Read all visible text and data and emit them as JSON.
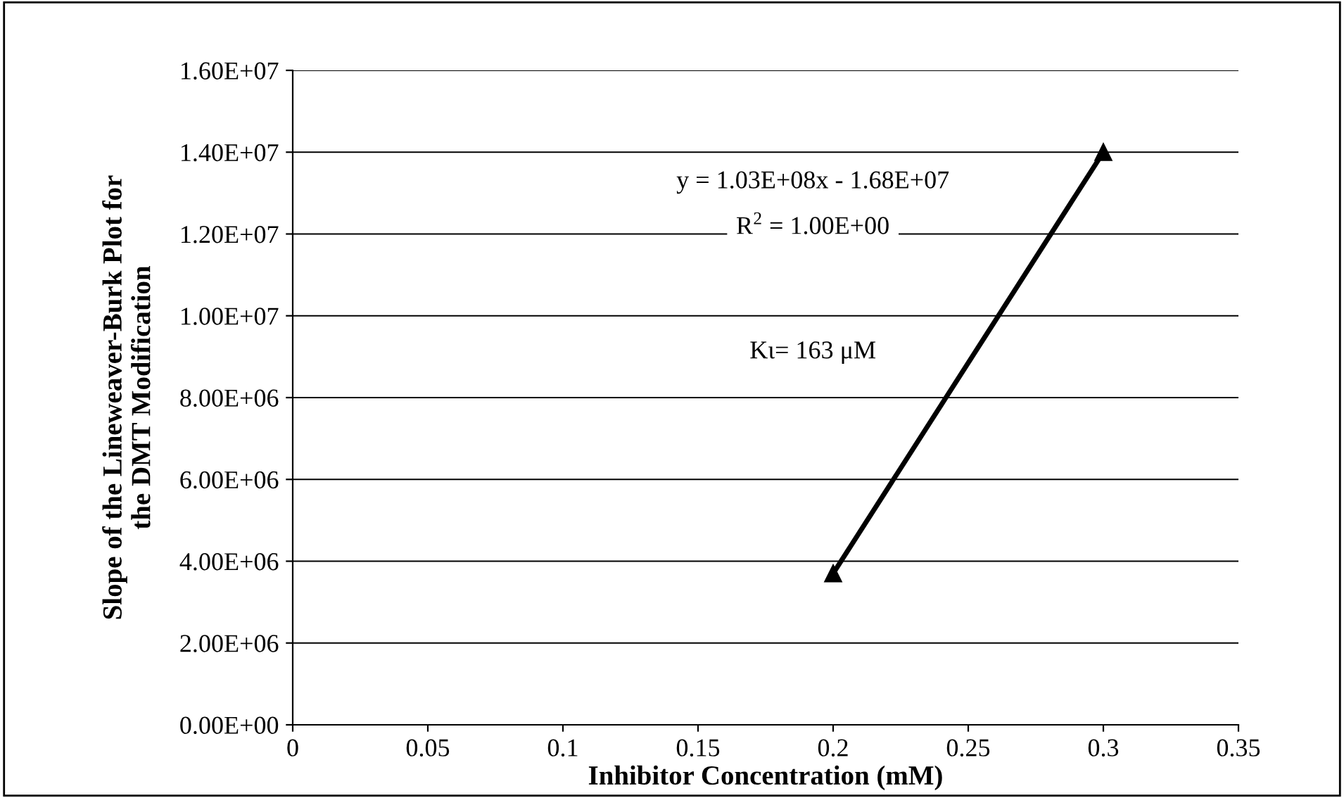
{
  "chart_data": {
    "type": "line",
    "xlabel": "Inhibitor Concentration (mM)",
    "ylabel": "Slope of the Lineweaver-Burk Plot for\nthe DMT Modification",
    "x": [
      0.2,
      0.3
    ],
    "series": [
      {
        "color": "#000000",
        "values": [
          3700000,
          14000000
        ]
      }
    ],
    "marker": "triangle",
    "line_style": "solid",
    "xlim": [
      0,
      0.35
    ],
    "xticks": [
      0,
      0.05,
      0.1,
      0.15,
      0.2,
      0.25,
      0.3,
      0.35
    ],
    "ylim": [
      0,
      16000000
    ],
    "yticks": [
      {
        "value": 0,
        "label": "0.00E+00"
      },
      {
        "value": 2000000,
        "label": "2.00E+06"
      },
      {
        "value": 4000000,
        "label": "4.00E+06"
      },
      {
        "value": 6000000,
        "label": "6.00E+06"
      },
      {
        "value": 8000000,
        "label": "8.00E+06"
      },
      {
        "value": 10000000,
        "label": "1.00E+07"
      },
      {
        "value": 12000000,
        "label": "1.20E+07"
      },
      {
        "value": 14000000,
        "label": "1.40E+07"
      },
      {
        "value": 16000000,
        "label": "1.60E+07"
      }
    ],
    "grid": "y",
    "legend": false,
    "annotations": [
      "y = 1.03E+08x - 1.68E+07",
      "R$^{2}$ = 1.00E+00",
      "Kι= 163 μM"
    ]
  }
}
